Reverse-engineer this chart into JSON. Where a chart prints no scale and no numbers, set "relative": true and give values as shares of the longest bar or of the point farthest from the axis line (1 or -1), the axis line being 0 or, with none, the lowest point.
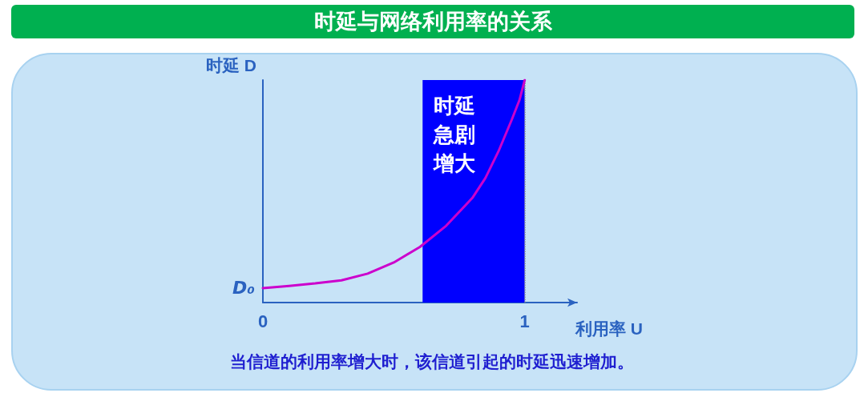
{
  "chart_data": {
    "type": "line",
    "title": "时延与网络利用率的关系",
    "xlabel": "利用率 U",
    "ylabel": "时延 D",
    "relative": true,
    "x": [
      0,
      0.1,
      0.2,
      0.3,
      0.4,
      0.5,
      0.6,
      0.7,
      0.8,
      0.85,
      0.9,
      0.95,
      0.98,
      1
    ],
    "series": [
      {
        "color": "#cc00cc",
        "values": [
          0.065,
          0.075,
          0.086,
          0.1,
          0.13,
          0.18,
          0.25,
          0.345,
          0.47,
          0.56,
          0.68,
          0.82,
          0.91,
          1
        ]
      }
    ],
    "xlim": [
      0,
      1.2
    ],
    "xticks": [
      0,
      1
    ],
    "bands": [
      {
        "axis": "x",
        "from": 0.61,
        "to": 1,
        "label": "时延急剧增大",
        "color": "#0000ff"
      }
    ],
    "ref_lines": [
      {
        "axis": "x",
        "value": 1,
        "line_style": "dotted",
        "color": "#888888"
      }
    ],
    "annotations": [
      {
        "text": "D₀",
        "x": 0,
        "y": 0.065
      },
      "当信道的利用率增大时，该信道引起的时延迅速增加。"
    ],
    "grid": false,
    "marker": "none",
    "line_style": "solid"
  }
}
